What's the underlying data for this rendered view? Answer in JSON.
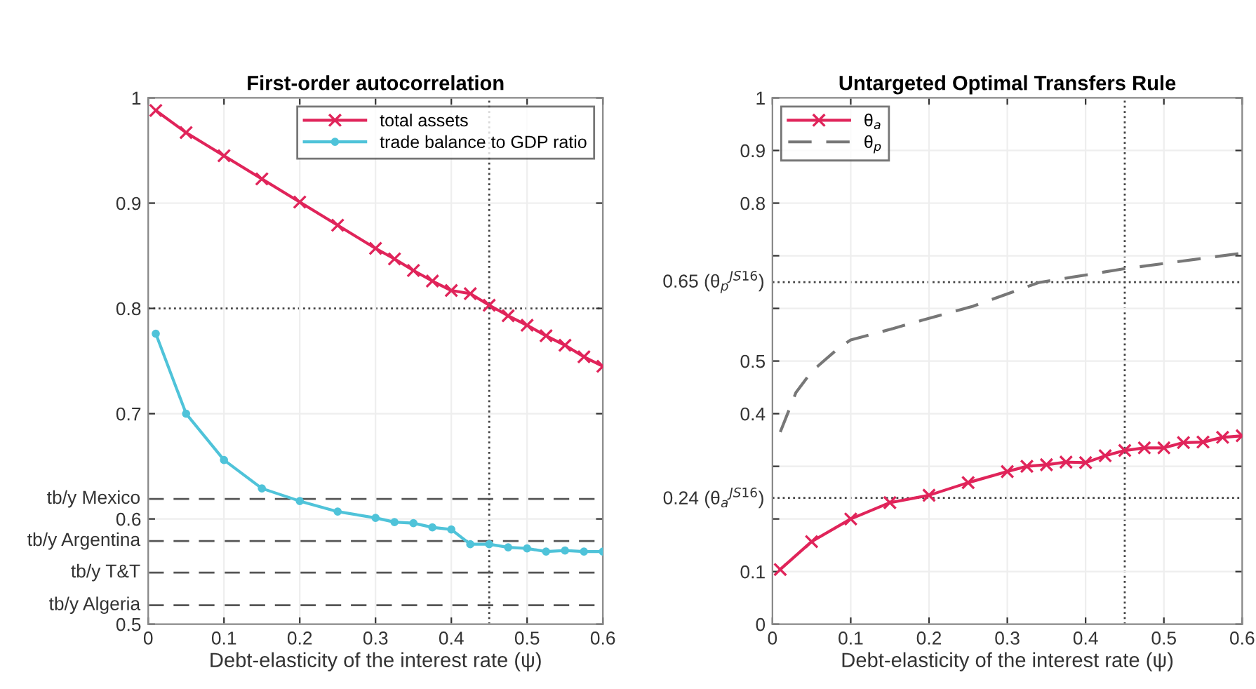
{
  "chart_data": [
    {
      "type": "line",
      "title": "First-order autocorrelation",
      "xlabel": "Debt-elasticity of the interest rate (ψ)",
      "xlim": [
        0,
        0.6
      ],
      "xticks": [
        0,
        0.1,
        0.2,
        0.3,
        0.4,
        0.5,
        0.6
      ],
      "ylim": [
        0.5,
        1
      ],
      "yticks": [
        0.5,
        0.6,
        0.7,
        0.8,
        0.9,
        1
      ],
      "grid": true,
      "legend": "top right",
      "x": [
        0.01,
        0.05,
        0.1,
        0.15,
        0.2,
        0.25,
        0.3,
        0.325,
        0.35,
        0.375,
        0.4,
        0.425,
        0.45,
        0.475,
        0.5,
        0.525,
        0.55,
        0.575,
        0.6
      ],
      "series": [
        {
          "name": "total assets",
          "color": "#e0245a",
          "marker": "cross",
          "line_style": "solid",
          "values": [
            0.988,
            0.967,
            0.945,
            0.923,
            0.901,
            0.879,
            0.857,
            0.847,
            0.836,
            0.826,
            0.817,
            0.814,
            0.803,
            0.793,
            0.784,
            0.774,
            0.765,
            0.754,
            0.745
          ]
        },
        {
          "name": "trade balance to GDP ratio",
          "color": "#4fc3d9",
          "marker": "circle",
          "line_style": "solid",
          "values": [
            0.776,
            0.7,
            0.656,
            0.629,
            0.617,
            0.607,
            0.601,
            0.597,
            0.596,
            0.592,
            0.59,
            0.576,
            0.576,
            0.573,
            0.572,
            0.569,
            0.57,
            0.569,
            0.569
          ]
        }
      ],
      "ref_lines": [
        {
          "axis": "y",
          "value": 0.8,
          "color": "#444444",
          "line_style": "dotted"
        },
        {
          "axis": "x",
          "value": 0.45,
          "color": "#444444",
          "line_style": "dotted"
        },
        {
          "axis": "y",
          "value": 0.619,
          "label": "tb/y Mexico",
          "color": "#555555",
          "line_style": "dashed"
        },
        {
          "axis": "y",
          "value": 0.579,
          "label": "tb/y Argentina",
          "color": "#555555",
          "line_style": "dashed"
        },
        {
          "axis": "y",
          "value": 0.549,
          "label": "tb/y T&T",
          "color": "#555555",
          "line_style": "dashed"
        },
        {
          "axis": "y",
          "value": 0.518,
          "label": "tb/y Algeria",
          "color": "#555555",
          "line_style": "dashed"
        }
      ]
    },
    {
      "type": "line",
      "title": "Untargeted Optimal Transfers Rule",
      "xlabel": "Debt-elasticity of the interest rate (ψ)",
      "xlim": [
        0,
        0.6
      ],
      "xticks": [
        0,
        0.1,
        0.2,
        0.3,
        0.4,
        0.5,
        0.6
      ],
      "ylim": [
        0,
        1
      ],
      "yticks": [
        0,
        0.1,
        {
          "value": 0.2,
          "label": null
        },
        {
          "value": 0.3,
          "label": null
        },
        0.4,
        0.5,
        {
          "value": 0.6,
          "label": null
        },
        {
          "value": 0.7,
          "label": null
        },
        0.8,
        0.9,
        1
      ],
      "grid": true,
      "legend": "top left",
      "series": [
        {
          "name": "θ$_{a}$",
          "color": "#e0245a",
          "marker": "cross",
          "line_style": "solid",
          "x": [
            0.01,
            0.05,
            0.1,
            0.15,
            0.2,
            0.25,
            0.3,
            0.325,
            0.35,
            0.375,
            0.4,
            0.425,
            0.45,
            0.475,
            0.5,
            0.525,
            0.55,
            0.575,
            0.6
          ],
          "values": [
            0.104,
            0.157,
            0.2,
            0.231,
            0.245,
            0.269,
            0.29,
            0.3,
            0.303,
            0.308,
            0.307,
            0.32,
            0.33,
            0.335,
            0.335,
            0.345,
            0.346,
            0.355,
            0.358
          ]
        },
        {
          "name": "θ$_{p}$",
          "color": "#777777",
          "marker": "none",
          "line_style": "dashed",
          "x": [
            0.01,
            0.03,
            0.05,
            0.084,
            0.1,
            0.15,
            0.19,
            0.256,
            0.34,
            0.448,
            0.6
          ],
          "values": [
            0.365,
            0.44,
            0.48,
            0.524,
            0.54,
            0.56,
            0.577,
            0.604,
            0.649,
            0.675,
            0.705
          ]
        }
      ],
      "ref_lines": [
        {
          "axis": "y",
          "value": 0.65,
          "label": "0.65 (θ$_{p}$$^{JS16}$)",
          "color": "#444444",
          "line_style": "dotted"
        },
        {
          "axis": "y",
          "value": 0.24,
          "label": "0.24 (θ$_{a}$$^{JS16}$)",
          "color": "#444444",
          "line_style": "dotted"
        },
        {
          "axis": "x",
          "value": 0.45,
          "color": "#444444",
          "line_style": "dotted"
        }
      ]
    }
  ]
}
